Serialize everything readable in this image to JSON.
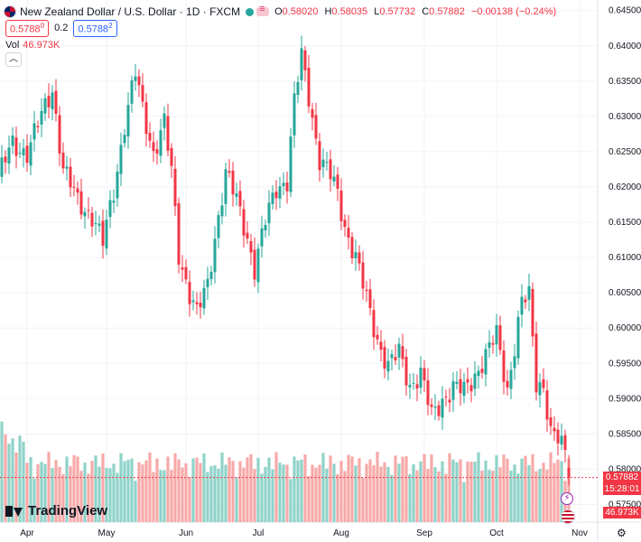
{
  "header": {
    "symbol": "New Zealand Dollar / U.S. Dollar · 1D · FXCM",
    "open_label": "O",
    "open": "0.58020",
    "high_label": "H",
    "high": "0.58035",
    "low_label": "L",
    "low": "0.57732",
    "close_label": "C",
    "close": "0.57882",
    "change": "−0.00138 (−0.24%)"
  },
  "quote": {
    "sell": "0.5788",
    "sell_sup": "0",
    "spread": "0.2",
    "buy": "0.5788",
    "buy_sup": "2"
  },
  "volume_legend": {
    "label": "Vol",
    "value": "46.973K"
  },
  "collapse_icon": "chevron-up",
  "last_price_tag": {
    "price": "0.57882",
    "countdown": "15:28:01"
  },
  "volume_tag": "46.973K",
  "logo_text": "TradingView",
  "colors": {
    "up": "#26a69a",
    "down": "#f23645",
    "up_vol": "#8fd3c9",
    "down_vol": "#f7a9a8"
  },
  "chart_data": {
    "type": "candlestick",
    "title": "New Zealand Dollar / U.S. Dollar · 1D · FXCM",
    "xlabel": "",
    "ylabel": "",
    "ylim": [
      0.5725,
      0.6465
    ],
    "yticks": [
      "0.64500",
      "0.64000",
      "0.63500",
      "0.63000",
      "0.62500",
      "0.62000",
      "0.61500",
      "0.61000",
      "0.60500",
      "0.60000",
      "0.59500",
      "0.59000",
      "0.58500",
      "0.58000",
      "0.57500"
    ],
    "xticks": [
      {
        "label": "Apr",
        "index": 8
      },
      {
        "label": "May",
        "index": 30
      },
      {
        "label": "Jun",
        "index": 52
      },
      {
        "label": "Jul",
        "index": 72
      },
      {
        "label": "Aug",
        "index": 95
      },
      {
        "label": "Sep",
        "index": 118
      },
      {
        "label": "Oct",
        "index": 138
      },
      {
        "label": "Nov",
        "index": 161
      }
    ],
    "keypoints": [
      [
        0,
        0.6215
      ],
      [
        4,
        0.626
      ],
      [
        8,
        0.625
      ],
      [
        12,
        0.63
      ],
      [
        15,
        0.634
      ],
      [
        18,
        0.6225
      ],
      [
        22,
        0.618
      ],
      [
        26,
        0.616
      ],
      [
        29,
        0.612
      ],
      [
        32,
        0.6195
      ],
      [
        35,
        0.629
      ],
      [
        38,
        0.636
      ],
      [
        40,
        0.631
      ],
      [
        43,
        0.625
      ],
      [
        46,
        0.629
      ],
      [
        48,
        0.622
      ],
      [
        50,
        0.6105
      ],
      [
        53,
        0.605
      ],
      [
        55,
        0.602
      ],
      [
        58,
        0.606
      ],
      [
        60,
        0.613
      ],
      [
        63,
        0.622
      ],
      [
        66,
        0.618
      ],
      [
        69,
        0.613
      ],
      [
        71,
        0.6085
      ],
      [
        74,
        0.615
      ],
      [
        77,
        0.62
      ],
      [
        80,
        0.621
      ],
      [
        82,
        0.632
      ],
      [
        84,
        0.6385
      ],
      [
        86,
        0.633
      ],
      [
        89,
        0.624
      ],
      [
        92,
        0.6215
      ],
      [
        94,
        0.619
      ],
      [
        96,
        0.6145
      ],
      [
        99,
        0.61
      ],
      [
        102,
        0.604
      ],
      [
        105,
        0.5985
      ],
      [
        108,
        0.5945
      ],
      [
        111,
        0.5965
      ],
      [
        114,
        0.592
      ],
      [
        117,
        0.5935
      ],
      [
        120,
        0.5875
      ],
      [
        123,
        0.59
      ],
      [
        126,
        0.5915
      ],
      [
        129,
        0.591
      ],
      [
        132,
        0.5935
      ],
      [
        135,
        0.596
      ],
      [
        138,
        0.599
      ],
      [
        141,
        0.5915
      ],
      [
        143,
        0.5975
      ],
      [
        145,
        0.6035
      ],
      [
        147,
        0.6045
      ],
      [
        149,
        0.5925
      ],
      [
        151,
        0.592
      ],
      [
        153,
        0.585
      ],
      [
        155,
        0.584
      ],
      [
        157,
        0.5825
      ],
      [
        158,
        0.5788
      ]
    ],
    "candle_count": 159,
    "volume_axis_max_k": 80,
    "volume_last_k": 46.973,
    "last_close": 0.57882
  }
}
